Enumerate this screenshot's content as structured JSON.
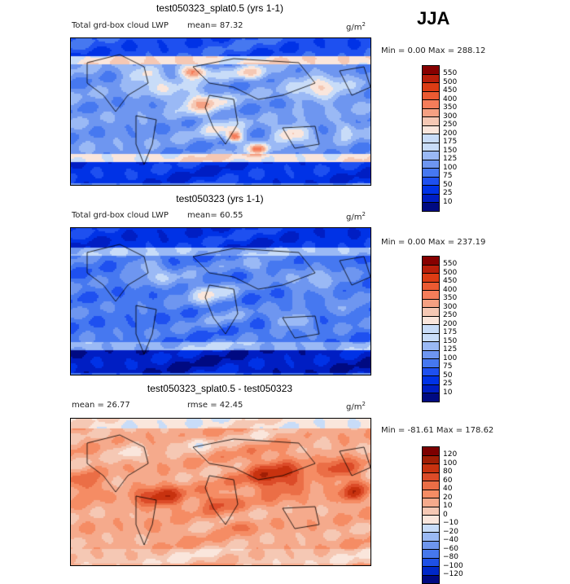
{
  "season": "JJA",
  "colors": {
    "lwp": [
      "#000a82",
      "#001ec3",
      "#0032e6",
      "#1e50f0",
      "#4678f0",
      "#6e96f0",
      "#9ab9f5",
      "#c8dcf8",
      "#fae6dc",
      "#f5c8b4",
      "#f5a082",
      "#f57d5a",
      "#eb5a32",
      "#dc3c14",
      "#b91e0a",
      "#870000"
    ],
    "diff": [
      "#000a82",
      "#0028c8",
      "#1e50e6",
      "#4678ec",
      "#6e96ee",
      "#9ab9f4",
      "#c8dcf8",
      "#fae6dc",
      "#f5c8b4",
      "#f5aa8c",
      "#f58c64",
      "#eb6e46",
      "#dc4b28",
      "#c8320f",
      "#a01e05",
      "#7d0000"
    ]
  },
  "panels": [
    {
      "title": "test050323_splat0.5 (yrs 1-1)",
      "field_label": "Total grd-box cloud LWP",
      "stat1": "mean=  87.32",
      "stat2": "",
      "units_base": "g/m",
      "units_exp": "2",
      "minmax": "Min =    0.00 Max = 288.12",
      "legend": [
        "550",
        "500",
        "450",
        "400",
        "350",
        "300",
        "250",
        "200",
        "175",
        "150",
        "125",
        "100",
        "75",
        "50",
        "25",
        "10"
      ],
      "scheme": "lwp",
      "field": {
        "base": 5,
        "blobs": [
          [
            110,
            60,
            32,
            12,
            2
          ],
          [
            160,
            78,
            28,
            14,
            4
          ],
          [
            220,
            42,
            26,
            9,
            3
          ],
          [
            305,
            60,
            34,
            16,
            3
          ],
          [
            180,
            108,
            26,
            12,
            2
          ],
          [
            270,
            116,
            20,
            10,
            4
          ],
          [
            338,
            108,
            12,
            8,
            2
          ],
          [
            88,
            42,
            20,
            10,
            3
          ],
          [
            150,
            40,
            18,
            8,
            6
          ],
          [
            200,
            120,
            10,
            7,
            7
          ],
          [
            230,
            135,
            12,
            7,
            6
          ],
          [
            340,
            118,
            10,
            10,
            1
          ]
        ],
        "bands": [
          [
            0,
            22,
            -2
          ],
          [
            22,
            32,
            3
          ],
          [
            142,
            152,
            3
          ],
          [
            152,
            178,
            -3
          ]
        ]
      },
      "chart_data": {
        "type": "heatmap",
        "title": "test050323_splat0.5 (yrs 1-1)",
        "subtitle": "Total grd-box cloud LWP",
        "mean": 87.32,
        "min": 0.0,
        "max": 288.12,
        "units": "g/m2",
        "colorbar_levels": [
          10,
          25,
          50,
          75,
          100,
          125,
          150,
          175,
          200,
          250,
          300,
          350,
          400,
          450,
          500,
          550
        ]
      }
    },
    {
      "title": "test050323 (yrs 1-1)",
      "field_label": "Total grd-box cloud LWP",
      "stat1": "mean=  60.55",
      "stat2": "",
      "units_base": "g/m",
      "units_exp": "2",
      "minmax": "Min =    0.00 Max = 237.19",
      "legend": [
        "550",
        "500",
        "450",
        "400",
        "350",
        "300",
        "250",
        "200",
        "175",
        "150",
        "125",
        "100",
        "75",
        "50",
        "25",
        "10"
      ],
      "scheme": "lwp",
      "field": {
        "base": 4,
        "blobs": [
          [
            110,
            60,
            34,
            12,
            2
          ],
          [
            170,
            80,
            30,
            16,
            3
          ],
          [
            230,
            48,
            24,
            10,
            2
          ],
          [
            300,
            64,
            34,
            16,
            2
          ],
          [
            190,
            110,
            24,
            12,
            1
          ],
          [
            270,
            112,
            22,
            10,
            3
          ],
          [
            90,
            44,
            18,
            10,
            2
          ],
          [
            338,
            100,
            14,
            10,
            2
          ]
        ],
        "bands": [
          [
            0,
            24,
            -2
          ],
          [
            24,
            34,
            2
          ],
          [
            140,
            150,
            2
          ],
          [
            150,
            178,
            -3
          ]
        ]
      },
      "chart_data": {
        "type": "heatmap",
        "title": "test050323 (yrs 1-1)",
        "subtitle": "Total grd-box cloud LWP",
        "mean": 60.55,
        "min": 0.0,
        "max": 237.19,
        "units": "g/m2",
        "colorbar_levels": [
          10,
          25,
          50,
          75,
          100,
          125,
          150,
          175,
          200,
          250,
          300,
          350,
          400,
          450,
          500,
          550
        ]
      }
    },
    {
      "title": "test050323_splat0.5 - test050323",
      "field_label": "",
      "stat1": "mean =  26.77",
      "stat2": "rmse =  42.45",
      "units_base": "g/m",
      "units_exp": "2",
      "minmax": "Min = -81.61 Max = 178.62",
      "legend": [
        "120",
        "100",
        "80",
        "60",
        "40",
        "20",
        "10",
        "0",
        "−10",
        "−20",
        "−40",
        "−60",
        "−80",
        "−100",
        "−120"
      ],
      "scheme": "diff",
      "field": {
        "base": 9,
        "blobs": [
          [
            250,
            70,
            40,
            22,
            4
          ],
          [
            110,
            95,
            30,
            14,
            4
          ],
          [
            180,
            100,
            22,
            12,
            3
          ],
          [
            330,
            60,
            22,
            14,
            3
          ],
          [
            70,
            40,
            18,
            10,
            -2
          ],
          [
            150,
            30,
            22,
            8,
            -2
          ],
          [
            20,
            80,
            14,
            14,
            3
          ],
          [
            345,
            90,
            14,
            14,
            4
          ],
          [
            300,
            30,
            14,
            10,
            -1
          ],
          [
            230,
            20,
            20,
            8,
            -1
          ],
          [
            200,
            130,
            14,
            8,
            2
          ],
          [
            120,
            140,
            18,
            8,
            1
          ]
        ],
        "bands": [
          [
            0,
            12,
            -2
          ],
          [
            160,
            178,
            -1
          ]
        ]
      },
      "chart_data": {
        "type": "heatmap",
        "title": "test050323_splat0.5 - test050323",
        "mean": 26.77,
        "rmse": 42.45,
        "min": -81.61,
        "max": 178.62,
        "units": "g/m2",
        "colorbar_levels": [
          -120,
          -100,
          -80,
          -60,
          -40,
          -20,
          -10,
          0,
          10,
          20,
          40,
          60,
          80,
          100,
          120
        ]
      }
    }
  ]
}
